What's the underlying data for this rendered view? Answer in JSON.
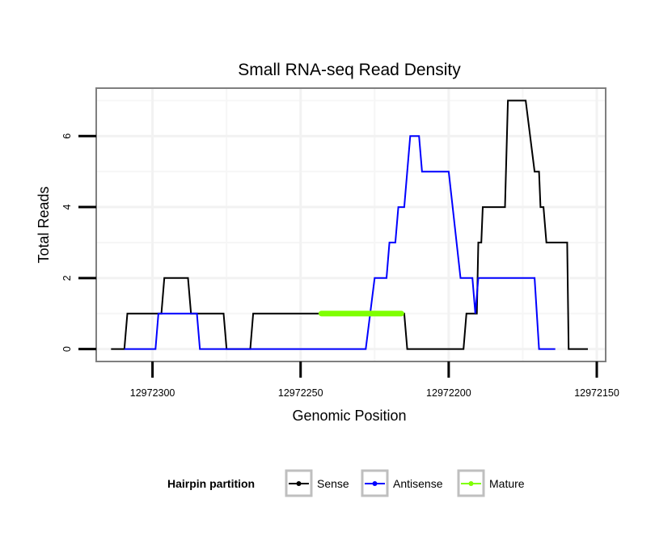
{
  "chart_data": {
    "type": "line",
    "title": "Small RNA-seq Read Density",
    "xlabel": "Genomic Position",
    "ylabel": "Total Reads",
    "x_reversed": true,
    "xlim": [
      12972319,
      12972147
    ],
    "ylim": [
      -0.35,
      7.35
    ],
    "x_ticks": [
      12972300,
      12972250,
      12972200,
      12972150
    ],
    "x_tick_labels": [
      "12972300",
      "12972250",
      "12972200",
      "12972150"
    ],
    "y_ticks": [
      0,
      2,
      4,
      6
    ],
    "y_tick_labels": [
      "0",
      "2",
      "4",
      "6"
    ],
    "grid": true,
    "legend": {
      "title": "Hairpin partition",
      "placement": "bottom",
      "entries": [
        {
          "label": "Sense",
          "color": "#000000"
        },
        {
          "label": "Antisense",
          "color": "#0000ff"
        },
        {
          "label": "Mature",
          "color": "#7fff00"
        }
      ]
    },
    "series": [
      {
        "name": "Sense",
        "color": "#000000",
        "points": [
          [
            12972314,
            0
          ],
          [
            12972309.5,
            0
          ],
          [
            12972308.5,
            1
          ],
          [
            12972297,
            1
          ],
          [
            12972296,
            2
          ],
          [
            12972288,
            2
          ],
          [
            12972287,
            1
          ],
          [
            12972276,
            1
          ],
          [
            12972275,
            0
          ],
          [
            12972267,
            0
          ],
          [
            12972266,
            1
          ],
          [
            12972215,
            1
          ],
          [
            12972214,
            0
          ],
          [
            12972195,
            0
          ],
          [
            12972194,
            1
          ],
          [
            12972190.5,
            1
          ],
          [
            12972190,
            3
          ],
          [
            12972189,
            3
          ],
          [
            12972188.5,
            4
          ],
          [
            12972181,
            4
          ],
          [
            12972180,
            7
          ],
          [
            12972174,
            7
          ],
          [
            12972171,
            5
          ],
          [
            12972169.5,
            5
          ],
          [
            12972169,
            4
          ],
          [
            12972168,
            4
          ],
          [
            12972167,
            3
          ],
          [
            12972160,
            3
          ],
          [
            12972159.5,
            0
          ],
          [
            12972153,
            0
          ]
        ]
      },
      {
        "name": "Antisense",
        "color": "#0000ff",
        "points": [
          [
            12972309.5,
            0
          ],
          [
            12972299,
            0
          ],
          [
            12972298,
            1
          ],
          [
            12972285,
            1
          ],
          [
            12972284,
            0
          ],
          [
            12972228,
            0
          ],
          [
            12972225,
            2
          ],
          [
            12972221,
            2
          ],
          [
            12972220,
            3
          ],
          [
            12972218,
            3
          ],
          [
            12972217,
            4
          ],
          [
            12972215,
            4
          ],
          [
            12972213,
            6
          ],
          [
            12972210,
            6
          ],
          [
            12972209,
            5
          ],
          [
            12972200,
            5
          ],
          [
            12972196,
            2
          ],
          [
            12972192,
            2
          ],
          [
            12972191,
            1
          ],
          [
            12972190,
            2
          ],
          [
            12972171,
            2
          ],
          [
            12972169.5,
            0
          ],
          [
            12972164,
            0
          ]
        ]
      },
      {
        "name": "Mature",
        "color": "#7fff00",
        "points": [
          [
            12972243,
            1
          ],
          [
            12972216,
            1
          ]
        ]
      }
    ]
  }
}
